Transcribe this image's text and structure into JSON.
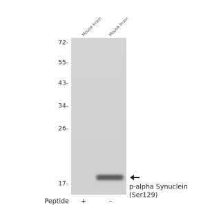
{
  "lanes": [
    "Mouse brain",
    "Mouse brain"
  ],
  "markers": [
    "72-",
    "55-",
    "43-",
    "34-",
    "26-",
    "17-"
  ],
  "target": {
    "lines": [
      "p-alpha Synuclein",
      "(Ser129)"
    ]
  },
  "peptide": {
    "label": "Peptide",
    "values": [
      "+",
      "-"
    ]
  }
}
